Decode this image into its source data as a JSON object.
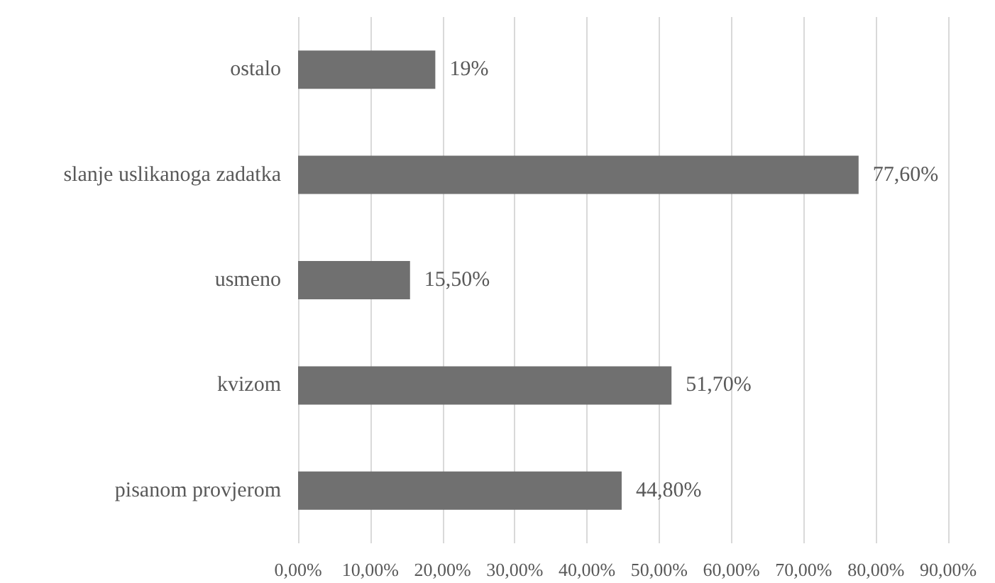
{
  "chart_data": {
    "type": "bar",
    "orientation": "horizontal",
    "categories": [
      "ostalo",
      "slanje uslikanoga zadatka",
      "usmeno",
      "kvizom",
      "pisanom provjerom"
    ],
    "values": [
      19,
      77.6,
      15.5,
      51.7,
      44.8
    ],
    "value_labels": [
      "19%",
      "77,60%",
      "15,50%",
      "51,70%",
      "44,80%"
    ],
    "color": "#707070",
    "xlim": [
      0,
      90
    ],
    "xticks": [
      {
        "value": 0,
        "label": "0,00%"
      },
      {
        "value": 10,
        "label": "10,00%"
      },
      {
        "value": 20,
        "label": "20,00%"
      },
      {
        "value": 30,
        "label": "30,00%"
      },
      {
        "value": 40,
        "label": "40,00%"
      },
      {
        "value": 50,
        "label": "50,00%"
      },
      {
        "value": 60,
        "label": "60,00%"
      },
      {
        "value": 70,
        "label": "70,00%"
      },
      {
        "value": 80,
        "label": "80,00%"
      },
      {
        "value": 90,
        "label": "90,00%"
      }
    ],
    "grid": "x"
  }
}
